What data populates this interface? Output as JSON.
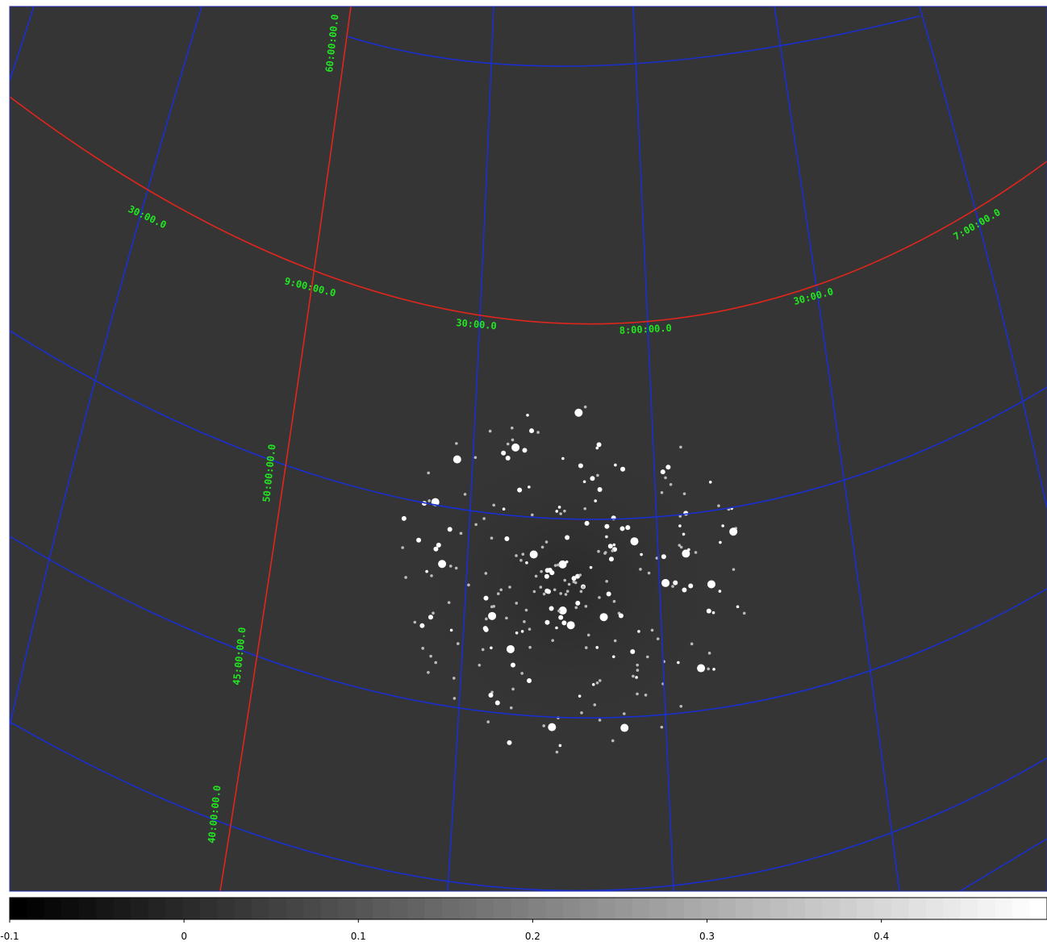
{
  "image": {
    "ra_labels": [
      "30:00.0",
      "9:00:00.0",
      "30:00.0",
      "8:00:00.0",
      "30:00.0",
      "7:00:00.0"
    ],
    "dec_labels": [
      "60:00:00.0",
      "50:00:00.0",
      "45:00:00.0",
      "40:00:00.0"
    ]
  },
  "colorbar": {
    "lim": [
      -0.1,
      0.495
    ],
    "ticks": [
      -0.1,
      0,
      0.1,
      0.2,
      0.3,
      0.4
    ]
  }
}
